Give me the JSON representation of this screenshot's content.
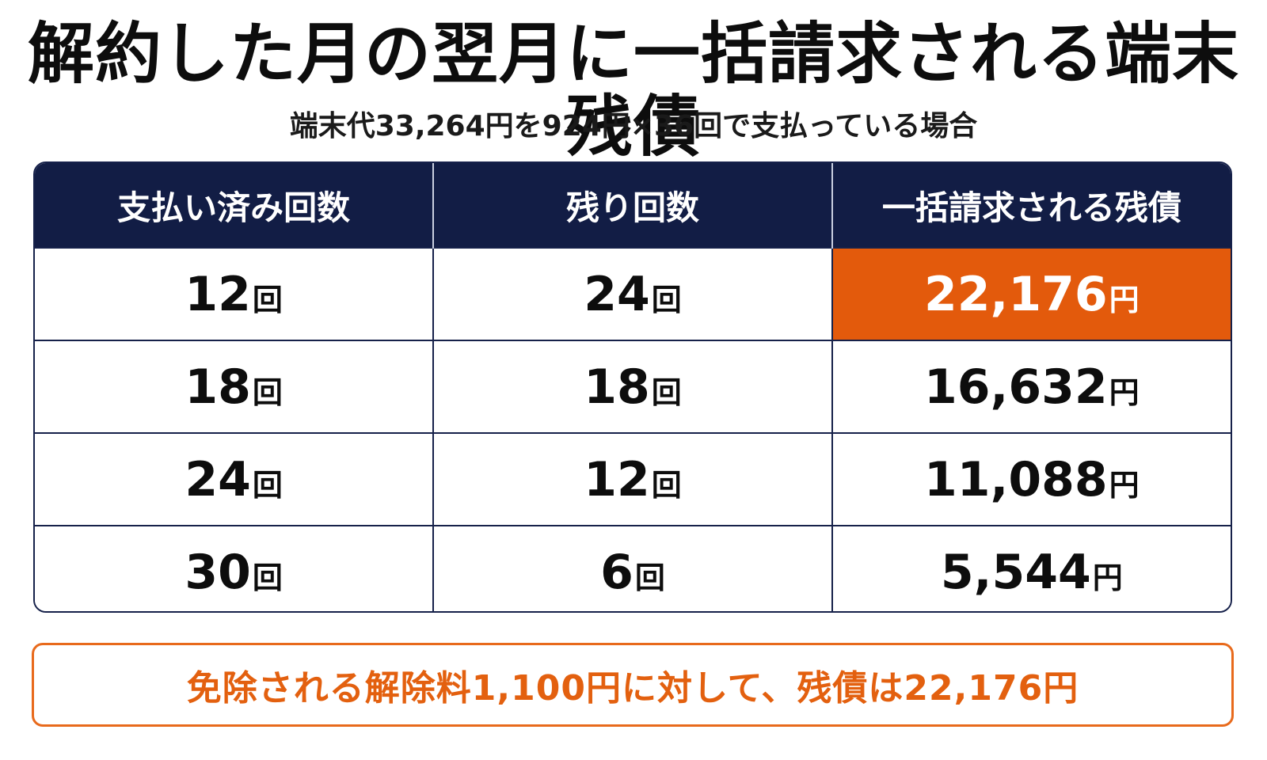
{
  "title": "解約した月の翌月に一括請求される端末残債",
  "subtitle": "端末代33,264円を924円×36回で支払っている場合",
  "table": {
    "headers": [
      "支払い済み回数",
      "残り回数",
      "一括請求される残債"
    ],
    "rows": [
      {
        "paid": "12",
        "paid_unit": "回",
        "remaining": "24",
        "remaining_unit": "回",
        "balance": "22,176",
        "balance_unit": "円"
      },
      {
        "paid": "18",
        "paid_unit": "回",
        "remaining": "18",
        "remaining_unit": "回",
        "balance": "16,632",
        "balance_unit": "円"
      },
      {
        "paid": "24",
        "paid_unit": "回",
        "remaining": "12",
        "remaining_unit": "回",
        "balance": "11,088",
        "balance_unit": "円"
      },
      {
        "paid": "30",
        "paid_unit": "回",
        "remaining": "6",
        "remaining_unit": "回",
        "balance": "5,544",
        "balance_unit": "円"
      }
    ]
  },
  "note": "免除される解除料1,100円に対して、残債は22,176円",
  "colors": {
    "header_bg": "#121d45",
    "highlight_bg": "#e35a0c",
    "note_accent": "#e3600f"
  }
}
